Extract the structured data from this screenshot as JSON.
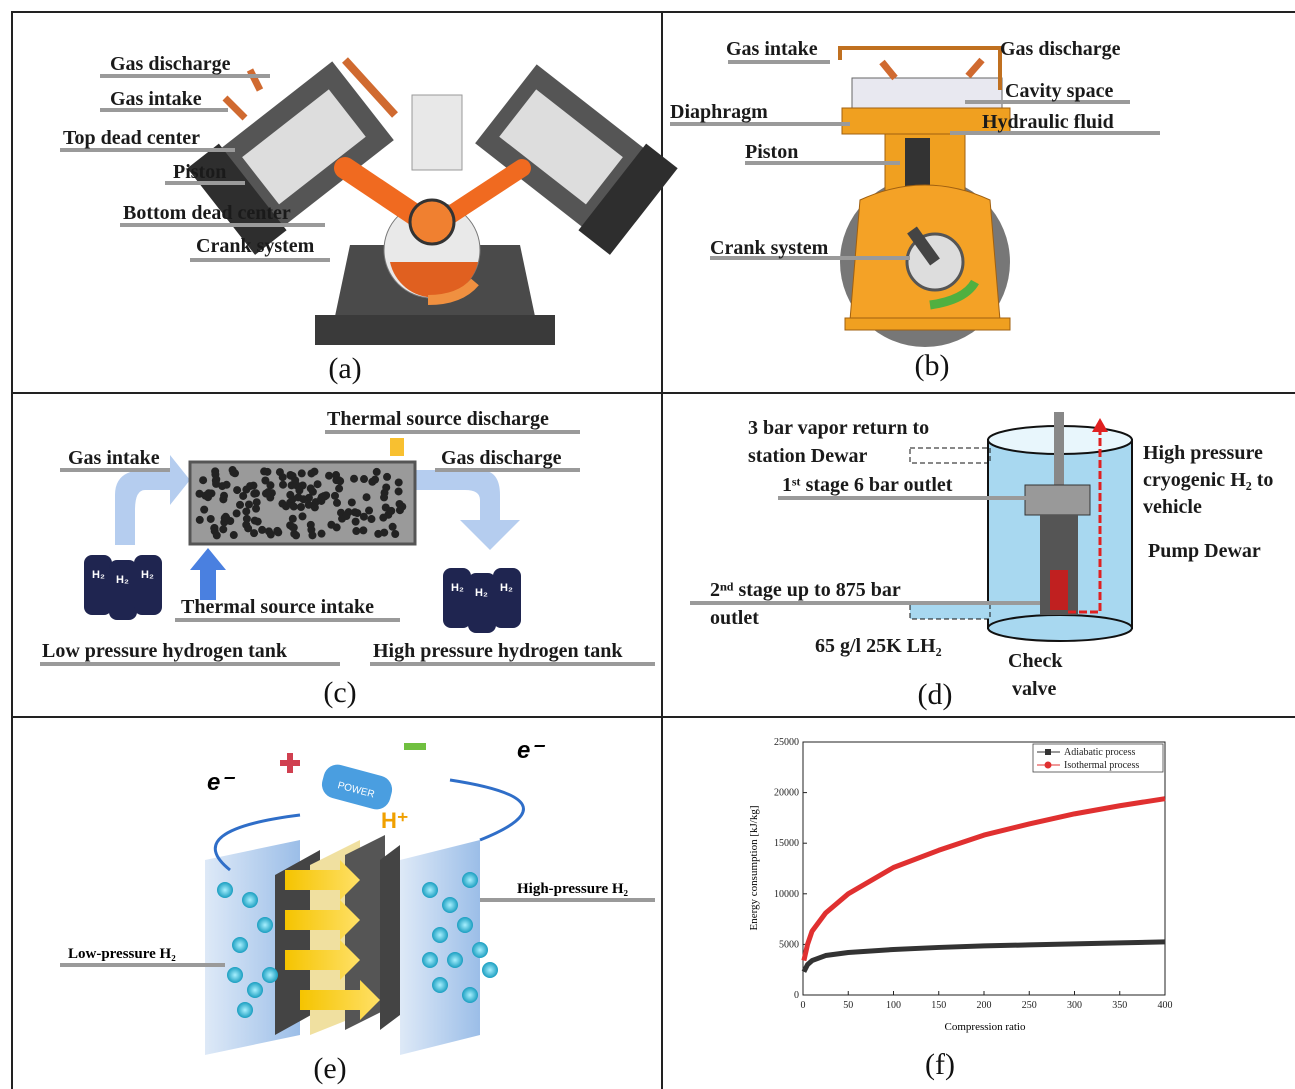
{
  "panels": {
    "a": {
      "caption": "(a)",
      "labels": [
        "Gas discharge",
        "Gas intake",
        "Top dead center",
        "Piston",
        "Bottom dead center",
        "Crank system"
      ]
    },
    "b": {
      "caption": "(b)",
      "labels": [
        "Gas intake",
        "Gas discharge",
        "Cavity space",
        "Diaphragm",
        "Hydraulic fluid",
        "Piston",
        "Crank system"
      ]
    },
    "c": {
      "caption": "(c)",
      "labels": [
        "Thermal source discharge",
        "Gas intake",
        "Gas discharge",
        "Thermal source intake",
        "Low pressure hydrogen tank",
        "High pressure hydrogen tank"
      ],
      "tank_label": "H₂"
    },
    "d": {
      "caption": "(d)",
      "vapor_return": [
        "3 bar vapor return to",
        "station Dewar"
      ],
      "vehicle": [
        "High pressure",
        "cryogenic H₂ to",
        "vehicle"
      ],
      "first_stage": "1ˢᵗ stage 6 bar outlet",
      "pump_dewar": "Pump Dewar",
      "second_stage": [
        "2ⁿᵈ stage up to 875 bar",
        "outlet"
      ],
      "lh2": "65 g/l 25K LH₂",
      "check_valve": [
        "Check",
        "valve"
      ]
    },
    "e": {
      "caption": "(e)",
      "electron": "e⁻",
      "proton": "H⁺",
      "battery": "POWER",
      "high": "High-pressure H₂",
      "low": "Low-pressure H₂"
    },
    "f": {
      "caption": "(f)",
      "chart": {
        "type": "line",
        "x_label": "Compression ratio",
        "y_label": "Energy consumption [kJ/kg]",
        "xlim": [
          0,
          400
        ],
        "ylim": [
          0,
          25000
        ],
        "xticks": [
          0,
          50,
          100,
          150,
          200,
          250,
          300,
          350,
          400
        ],
        "yticks": [
          0,
          5000,
          10000,
          15000,
          20000,
          25000
        ],
        "x": [
          1,
          5,
          10,
          25,
          50,
          100,
          150,
          200,
          250,
          300,
          350,
          400
        ],
        "series": [
          {
            "name": "Adiabatic process",
            "color": "#333333",
            "values": [
              2300,
              3000,
              3400,
              3900,
              4200,
              4500,
              4700,
              4850,
              4950,
              5050,
              5150,
              5250
            ]
          },
          {
            "name": "Isothermal process",
            "color": "#e03030",
            "values": [
              3400,
              5000,
              6300,
              8100,
              10000,
              12600,
              14300,
              15800,
              16900,
              17900,
              18700,
              19400
            ]
          }
        ]
      }
    }
  }
}
